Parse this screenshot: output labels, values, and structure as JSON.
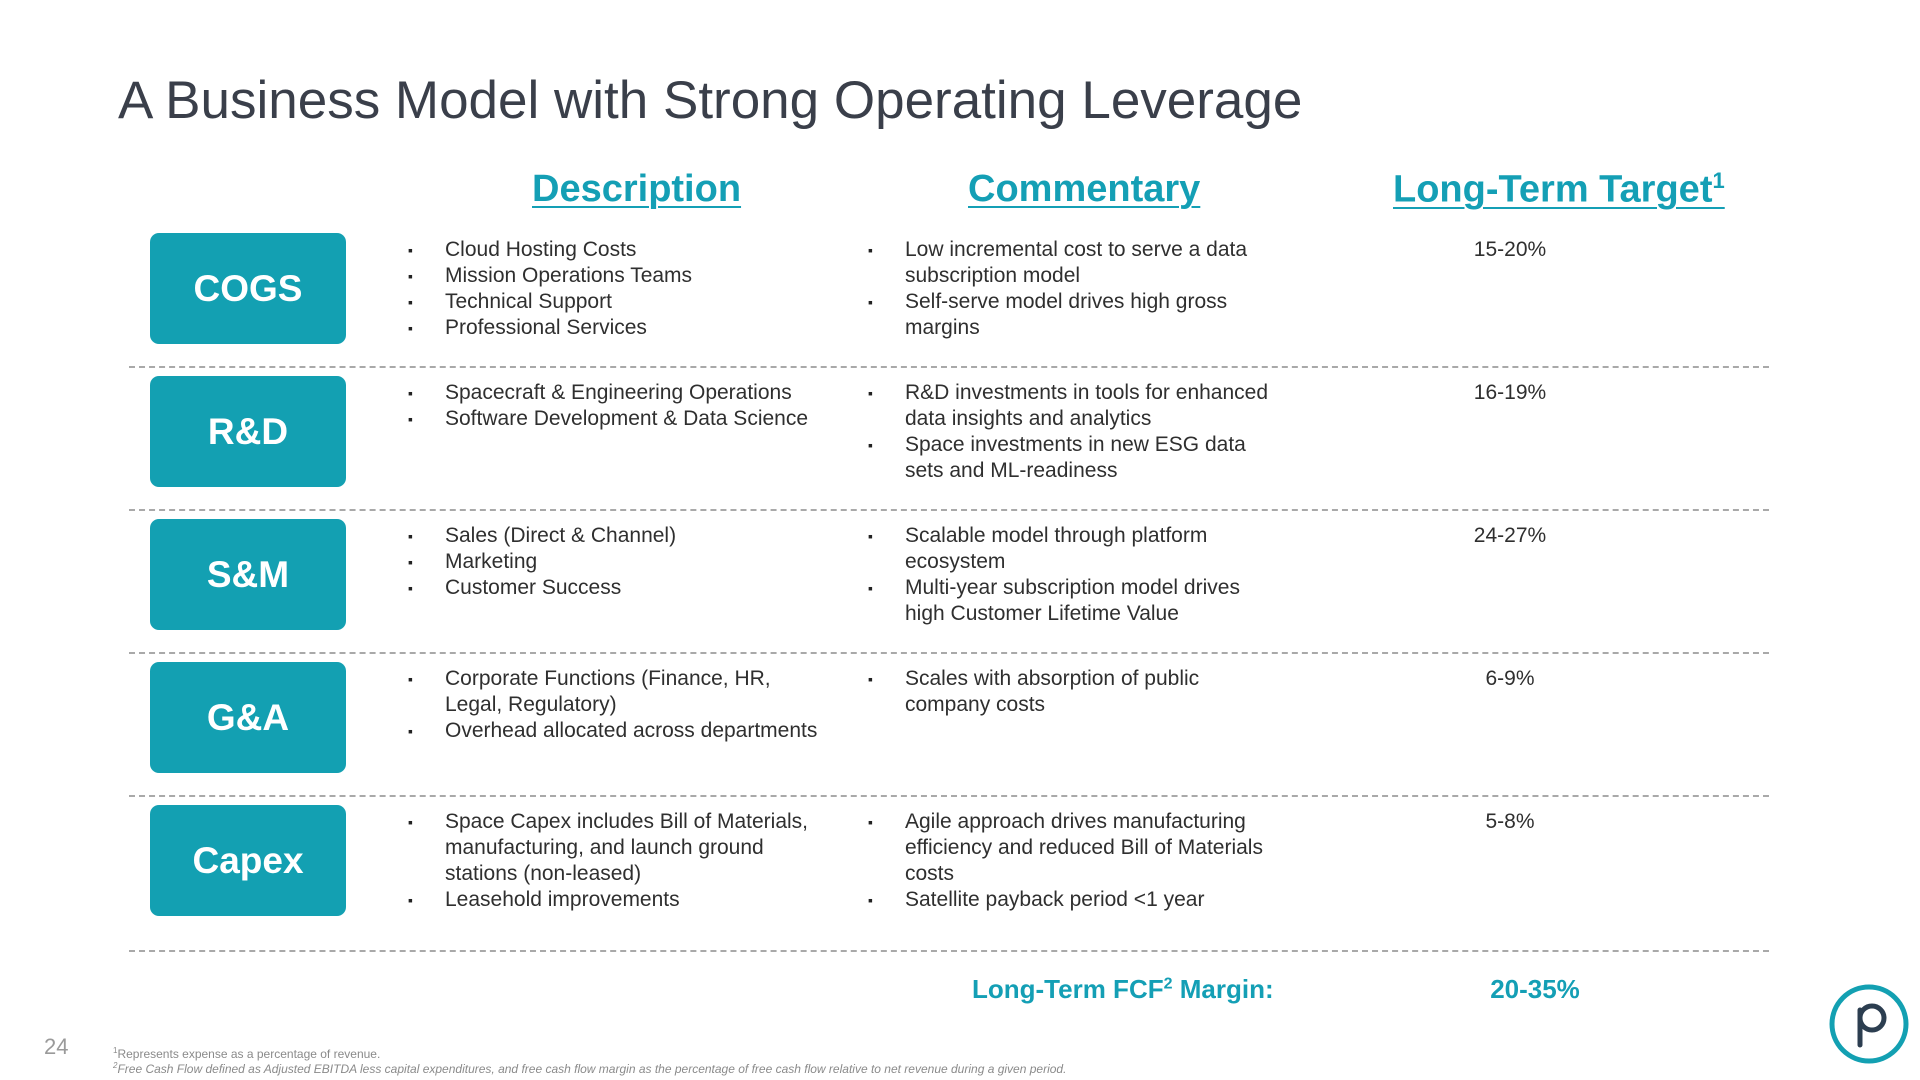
{
  "title": "A Business Model with Strong Operating Leverage",
  "columns": {
    "description": "Description",
    "commentary": "Commentary",
    "target": "Long-Term Target",
    "target_footnote": "1"
  },
  "rows": [
    {
      "label": "COGS",
      "description": [
        "Cloud Hosting Costs",
        "Mission Operations Teams",
        "Technical Support",
        "Professional Services"
      ],
      "commentary": [
        "Low incremental cost to serve a data subscription model",
        "Self-serve model drives high gross margins"
      ],
      "target": "15-20%"
    },
    {
      "label": "R&D",
      "description": [
        "Spacecraft & Engineering Operations",
        "Software Development & Data Science"
      ],
      "commentary": [
        "R&D investments in tools for enhanced data insights and analytics",
        "Space investments in new ESG data sets and ML-readiness"
      ],
      "target": "16-19%"
    },
    {
      "label": "S&M",
      "description": [
        "Sales (Direct & Channel)",
        "Marketing",
        "Customer Success"
      ],
      "commentary": [
        "Scalable model through platform ecosystem",
        "Multi-year subscription model drives high Customer Lifetime Value"
      ],
      "target": "24-27%"
    },
    {
      "label": "G&A",
      "description": [
        "Corporate Functions (Finance, HR, Legal, Regulatory)",
        "Overhead allocated across departments"
      ],
      "commentary": [
        "Scales with absorption of public company costs"
      ],
      "target": "6-9%"
    },
    {
      "label": "Capex",
      "description": [
        "Space Capex includes Bill of Materials, manufacturing, and launch ground stations (non-leased)",
        "Leasehold improvements"
      ],
      "commentary": [
        "Agile approach drives manufacturing efficiency and reduced Bill of Materials costs",
        "Satellite payback period <1 year"
      ],
      "target": "5-8%"
    }
  ],
  "fcf": {
    "label_pre": "Long-Term FCF",
    "label_sup": "2",
    "label_post": " Margin:",
    "value": "20-35%"
  },
  "page_number": "24",
  "footnotes": {
    "fn1_mark": "1",
    "fn1_text": "Represents expense as a percentage of revenue.",
    "fn2_mark": "2",
    "fn2_text": "Free Cash Flow defined as Adjusted EBITDA less capital expenditures, and free cash flow margin as the percentage of free cash flow relative to net revenue during a given period."
  },
  "colors": {
    "accent": "#13a0b2",
    "title": "#3a3f4a",
    "divider": "#a9a9a9"
  },
  "logo_icon": "planet-p-logo-icon"
}
